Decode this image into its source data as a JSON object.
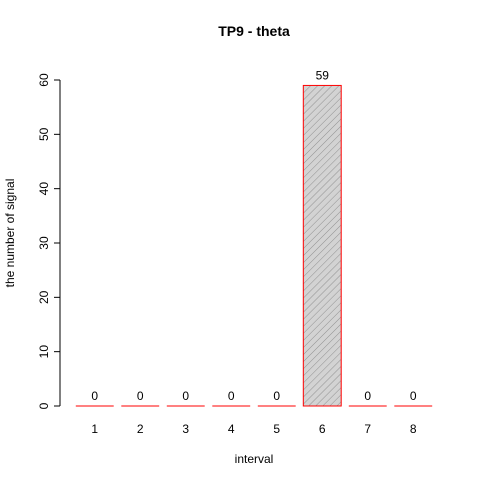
{
  "chart_data": {
    "type": "bar",
    "title": "TP9  -  theta",
    "xlabel": "interval",
    "ylabel": "the number of signal",
    "categories": [
      "1",
      "2",
      "3",
      "4",
      "5",
      "6",
      "7",
      "8"
    ],
    "values": [
      0,
      0,
      0,
      0,
      0,
      59,
      0,
      0
    ],
    "data_labels": [
      "0",
      "0",
      "0",
      "0",
      "0",
      "59",
      "0",
      "0"
    ],
    "ylim": [
      0,
      60
    ],
    "yticks": [
      0,
      10,
      20,
      30,
      40,
      50,
      60
    ],
    "grid": false,
    "bar_fill": "#d3d3d3",
    "bar_border": "#ff0000",
    "bar_hatch_color": "#808080",
    "bar_pattern": "diagonal-hatch"
  }
}
